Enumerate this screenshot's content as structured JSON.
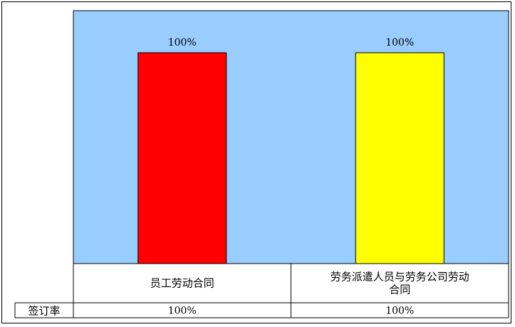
{
  "chart_data": {
    "type": "bar",
    "categories": [
      "员工劳动合同",
      "劳务派遣人员与劳务公司劳动合同"
    ],
    "category_lines": [
      [
        "员工劳动合同"
      ],
      [
        "劳务派遣人员与劳务公司劳动",
        "合同"
      ]
    ],
    "values": [
      100,
      100
    ],
    "value_labels": [
      "100%",
      "100%"
    ],
    "bar_colors": [
      "#ff0000",
      "#ffff00"
    ],
    "plot_background": "#99ccff",
    "ylim": [
      0,
      100
    ],
    "grid": false,
    "legend": "none",
    "data_table": {
      "row_label": "签订率",
      "cells": [
        "100%",
        "100%"
      ]
    }
  }
}
